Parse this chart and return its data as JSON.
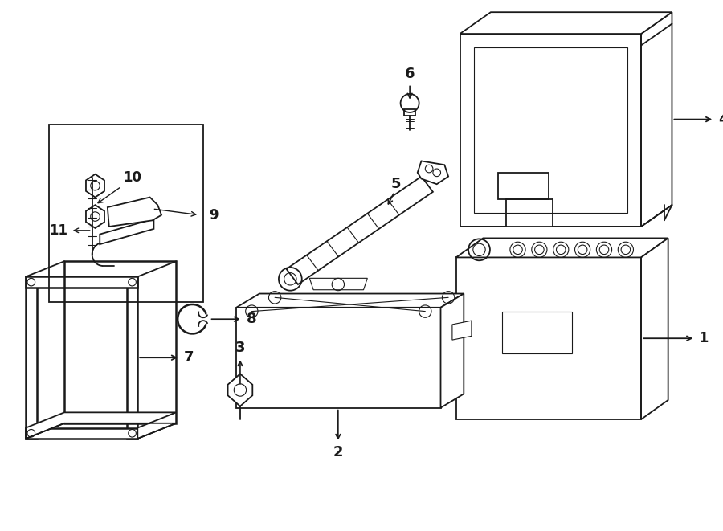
{
  "bg_color": "#ffffff",
  "line_color": "#1a1a1a",
  "lw": 1.3,
  "lw_thin": 0.8,
  "fig_width": 9.0,
  "fig_height": 6.61,
  "dpi": 100
}
